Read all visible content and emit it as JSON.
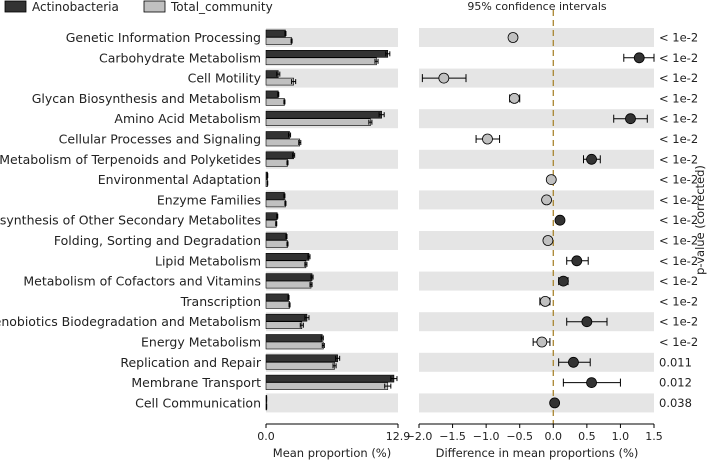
{
  "chart_data": {
    "type": "extended_error_bar",
    "legend": [
      {
        "name": "Actinobacteria",
        "color": "#333333"
      },
      {
        "name": "Total_community",
        "color": "#c0c0c0"
      }
    ],
    "ci_title": "95% confidence intervals",
    "left_panel": {
      "xlabel": "Mean proportion (%)",
      "xlim": [
        0,
        12.9
      ],
      "ticks": [
        "0.0",
        "12.9"
      ]
    },
    "right_panel": {
      "xlabel": "Difference in mean proportions (%)",
      "xlim": [
        -2.0,
        1.5
      ],
      "ticks": [
        -2.0,
        -1.5,
        -1.0,
        -0.5,
        0.0,
        0.5,
        1.0,
        1.5
      ],
      "tick_labels": [
        "−2.0",
        "−1.5",
        "−1.0",
        "−0.5",
        "0.0",
        "0.5",
        "1.0",
        "1.5"
      ],
      "zero_line_color": "#a88530"
    },
    "pvalue_title": "p-value (corrected)",
    "rows": [
      {
        "category": "Genetic Information Processing",
        "actino": 1.9,
        "actino_err": 0.05,
        "total": 2.5,
        "total_err": 0.05,
        "diff": -0.6,
        "ci": [
          -0.65,
          -0.55
        ],
        "pvalue": "< 1e-2"
      },
      {
        "category": "Carbohydrate Metabolism",
        "actino": 11.9,
        "actino_err": 0.2,
        "total": 10.8,
        "total_err": 0.15,
        "diff": 1.28,
        "ci": [
          1.05,
          1.5
        ],
        "pvalue": "< 1e-2"
      },
      {
        "category": "Cell Motility",
        "actino": 1.2,
        "actino_err": 0.15,
        "total": 2.7,
        "total_err": 0.2,
        "diff": -1.63,
        "ci": [
          -1.95,
          -1.3
        ],
        "pvalue": "< 1e-2"
      },
      {
        "category": "Glycan Biosynthesis and Metabolism",
        "actino": 1.2,
        "actino_err": 0.05,
        "total": 1.8,
        "total_err": 0.05,
        "diff": -0.58,
        "ci": [
          -0.65,
          -0.5
        ],
        "pvalue": "< 1e-2"
      },
      {
        "category": "Amino Acid Metabolism",
        "actino": 11.3,
        "actino_err": 0.25,
        "total": 10.2,
        "total_err": 0.15,
        "diff": 1.15,
        "ci": [
          0.9,
          1.4
        ],
        "pvalue": "< 1e-2"
      },
      {
        "category": "Cellular Processes and Signaling",
        "actino": 2.3,
        "actino_err": 0.1,
        "total": 3.3,
        "total_err": 0.1,
        "diff": -0.98,
        "ci": [
          -1.15,
          -0.8
        ],
        "pvalue": "< 1e-2"
      },
      {
        "category": "Metabolism of Terpenoids and Polyketides",
        "actino": 2.7,
        "actino_err": 0.1,
        "total": 2.1,
        "total_err": 0.05,
        "diff": 0.57,
        "ci": [
          0.45,
          0.7
        ],
        "pvalue": "< 1e-2"
      },
      {
        "category": "Environmental Adaptation",
        "actino": 0.15,
        "actino_err": 0.02,
        "total": 0.15,
        "total_err": 0.02,
        "diff": -0.03,
        "ci": [
          -0.06,
          0.0
        ],
        "pvalue": "< 1e-2"
      },
      {
        "category": "Enzyme Families",
        "actino": 1.8,
        "actino_err": 0.05,
        "total": 1.9,
        "total_err": 0.05,
        "diff": -0.1,
        "ci": [
          -0.13,
          -0.07
        ],
        "pvalue": "< 1e-2"
      },
      {
        "category": "Biosynthesis of Other Secondary Metabolites",
        "actino": 1.1,
        "actino_err": 0.05,
        "total": 1.0,
        "total_err": 0.05,
        "diff": 0.1,
        "ci": [
          0.06,
          0.14
        ],
        "pvalue": "< 1e-2"
      },
      {
        "category": "Folding, Sorting and Degradation",
        "actino": 2.0,
        "actino_err": 0.05,
        "total": 2.1,
        "total_err": 0.05,
        "diff": -0.08,
        "ci": [
          -0.12,
          -0.04
        ],
        "pvalue": "< 1e-2"
      },
      {
        "category": "Lipid Metabolism",
        "actino": 4.2,
        "actino_err": 0.1,
        "total": 3.9,
        "total_err": 0.1,
        "diff": 0.35,
        "ci": [
          0.2,
          0.52
        ],
        "pvalue": "< 1e-2"
      },
      {
        "category": "Metabolism of Cofactors and Vitamins",
        "actino": 4.5,
        "actino_err": 0.1,
        "total": 4.4,
        "total_err": 0.1,
        "diff": 0.15,
        "ci": [
          0.08,
          0.22
        ],
        "pvalue": "< 1e-2"
      },
      {
        "category": "Transcription",
        "actino": 2.2,
        "actino_err": 0.05,
        "total": 2.3,
        "total_err": 0.05,
        "diff": -0.12,
        "ci": [
          -0.2,
          -0.05
        ],
        "pvalue": "< 1e-2"
      },
      {
        "category": "Xenobiotics Biodegradation and Metabolism",
        "actino": 4.0,
        "actino_err": 0.2,
        "total": 3.5,
        "total_err": 0.15,
        "diff": 0.5,
        "ci": [
          0.2,
          0.8
        ],
        "pvalue": "< 1e-2"
      },
      {
        "category": "Energy Metabolism",
        "actino": 5.5,
        "actino_err": 0.1,
        "total": 5.6,
        "total_err": 0.1,
        "diff": -0.17,
        "ci": [
          -0.3,
          -0.05
        ],
        "pvalue": "< 1e-2"
      },
      {
        "category": "Replication and Repair",
        "actino": 7.0,
        "actino_err": 0.2,
        "total": 6.7,
        "total_err": 0.15,
        "diff": 0.3,
        "ci": [
          0.08,
          0.55
        ],
        "pvalue": "0.011"
      },
      {
        "category": "Membrane Transport",
        "actino": 12.5,
        "actino_err": 0.3,
        "total": 11.9,
        "total_err": 0.3,
        "diff": 0.57,
        "ci": [
          0.15,
          1.0
        ],
        "pvalue": "0.012"
      },
      {
        "category": "Cell Communication",
        "actino": 0.05,
        "actino_err": 0.01,
        "total": 0.05,
        "total_err": 0.01,
        "diff": 0.02,
        "ci": [
          0.0,
          0.04
        ],
        "pvalue": "0.038"
      }
    ]
  }
}
